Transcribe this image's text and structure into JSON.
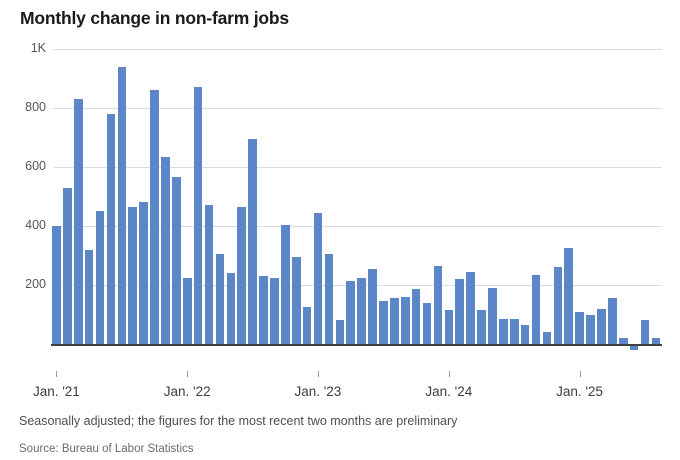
{
  "header": {
    "title": "Monthly change in non-farm jobs"
  },
  "footer": {
    "note": "Seasonally adjusted; the figures for the most recent two months are preliminary",
    "source": "Source: Bureau of Labor Statistics"
  },
  "colors": {
    "bar": "#5b87c8",
    "grid": "#dcdcdc",
    "axis": "#3f3f3f",
    "title_text": "#1a1a1a",
    "label_text": "#565656"
  },
  "chart_data": {
    "type": "bar",
    "title": "Monthly change in non-farm jobs",
    "unit": "thousands of jobs (K)",
    "categories": [
      "Jan 2021",
      "Feb 2021",
      "Mar 2021",
      "Apr 2021",
      "May 2021",
      "Jun 2021",
      "Jul 2021",
      "Aug 2021",
      "Sep 2021",
      "Oct 2021",
      "Nov 2021",
      "Dec 2021",
      "Jan 2022",
      "Feb 2022",
      "Mar 2022",
      "Apr 2022",
      "May 2022",
      "Jun 2022",
      "Jul 2022",
      "Aug 2022",
      "Sep 2022",
      "Oct 2022",
      "Nov 2022",
      "Dec 2022",
      "Jan 2023",
      "Feb 2023",
      "Mar 2023",
      "Apr 2023",
      "May 2023",
      "Jun 2023",
      "Jul 2023",
      "Aug 2023",
      "Sep 2023",
      "Oct 2023",
      "Nov 2023",
      "Dec 2023",
      "Jan 2024",
      "Feb 2024",
      "Mar 2024",
      "Apr 2024",
      "May 2024",
      "Jun 2024",
      "Jul 2024",
      "Aug 2024",
      "Sep 2024",
      "Oct 2024",
      "Nov 2024",
      "Dec 2024",
      "Jan 2025",
      "Feb 2025",
      "Mar 2025",
      "Apr 2025",
      "May 2025",
      "Jun 2025",
      "Jul 2025",
      "Aug 2025"
    ],
    "values": [
      400,
      530,
      830,
      320,
      450,
      780,
      940,
      465,
      480,
      860,
      635,
      565,
      225,
      870,
      470,
      305,
      240,
      465,
      695,
      230,
      225,
      405,
      295,
      125,
      445,
      305,
      80,
      215,
      225,
      255,
      145,
      155,
      160,
      185,
      140,
      265,
      115,
      220,
      245,
      115,
      190,
      85,
      85,
      65,
      235,
      40,
      260,
      325,
      110,
      100,
      120,
      155,
      20,
      -15,
      80,
      20
    ],
    "ylim": [
      -50,
      1000
    ],
    "y_tick_values": [
      1000,
      800,
      600,
      400,
      200
    ],
    "y_tick_labels": [
      "1K",
      "800",
      "600",
      "400",
      "200"
    ],
    "x_tick_indices": [
      0,
      12,
      24,
      36,
      48
    ],
    "x_tick_labels": [
      "Jan. '21",
      "Jan. '22",
      "Jan. '23",
      "Jan. '24",
      "Jan. '25"
    ],
    "grid": true,
    "legend": false,
    "xlabel": "",
    "ylabel": ""
  }
}
